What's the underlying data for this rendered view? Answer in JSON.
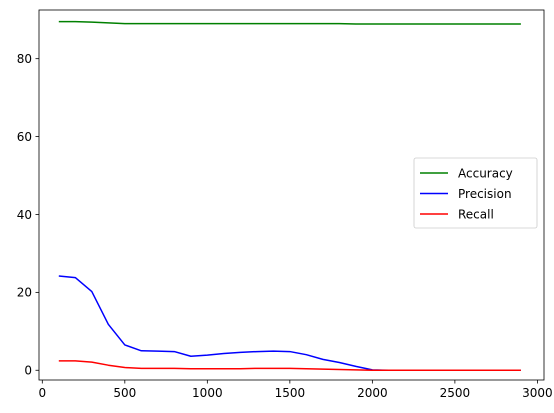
{
  "chart_data": {
    "type": "line",
    "xlim": [
      -20,
      3040
    ],
    "ylim": [
      -2.5,
      92.5
    ],
    "xticks": [
      0,
      500,
      1000,
      1500,
      2000,
      2500,
      3000
    ],
    "yticks": [
      0,
      20,
      40,
      60,
      80
    ],
    "grid": false,
    "legend_position": "center-right",
    "series": [
      {
        "name": "Accuracy",
        "color": "#008000",
        "x": [
          100,
          200,
          300,
          400,
          500,
          600,
          700,
          800,
          900,
          1000,
          1100,
          1200,
          1300,
          1400,
          1500,
          1600,
          1700,
          1800,
          1900,
          2000,
          2100,
          2200,
          2300,
          2400,
          2500,
          2600,
          2700,
          2800,
          2900
        ],
        "values": [
          89.5,
          89.5,
          89.4,
          89.2,
          89.0,
          89.0,
          89.0,
          89.0,
          89.0,
          89.0,
          89.0,
          89.0,
          89.0,
          89.0,
          89.0,
          89.0,
          89.0,
          89.0,
          88.9,
          88.9,
          88.9,
          88.9,
          88.9,
          88.9,
          88.9,
          88.9,
          88.9,
          88.9,
          88.9
        ]
      },
      {
        "name": "Precision",
        "color": "#0000ff",
        "x": [
          100,
          200,
          300,
          400,
          500,
          600,
          700,
          800,
          900,
          1000,
          1100,
          1200,
          1300,
          1400,
          1500,
          1600,
          1700,
          1800,
          1900,
          2000,
          2100,
          2200,
          2300,
          2400,
          2500,
          2600,
          2700,
          2800,
          2900
        ],
        "values": [
          24.2,
          23.8,
          20.2,
          11.8,
          6.5,
          5.0,
          4.9,
          4.8,
          3.6,
          3.9,
          4.3,
          4.6,
          4.8,
          4.9,
          4.8,
          4.0,
          2.8,
          2.0,
          1.0,
          0.1,
          0.0,
          0.0,
          0.0,
          0.0,
          0.0,
          0.0,
          0.0,
          0.0,
          0.0
        ]
      },
      {
        "name": "Recall",
        "color": "#ff0000",
        "x": [
          100,
          200,
          300,
          400,
          500,
          600,
          700,
          800,
          900,
          1000,
          1100,
          1200,
          1300,
          1400,
          1500,
          1600,
          1700,
          1800,
          1900,
          2000,
          2100,
          2200,
          2300,
          2400,
          2500,
          2600,
          2700,
          2800,
          2900
        ],
        "values": [
          2.4,
          2.4,
          2.1,
          1.3,
          0.7,
          0.5,
          0.5,
          0.5,
          0.4,
          0.4,
          0.4,
          0.4,
          0.5,
          0.5,
          0.5,
          0.4,
          0.3,
          0.2,
          0.1,
          0.0,
          0.0,
          0.0,
          0.0,
          0.0,
          0.0,
          0.0,
          0.0,
          0.0,
          0.0
        ]
      }
    ]
  }
}
